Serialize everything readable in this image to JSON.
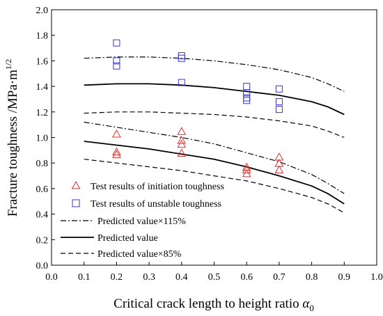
{
  "chart_data": {
    "type": "scatter",
    "xlabel": "Critical crack length to height ratio",
    "xlabel_symbol": "α",
    "xlabel_subscript": "0",
    "ylabel": "Fracture toughness /MPa·m",
    "ylabel_superscript": "1/2",
    "xlim": [
      0.0,
      1.0
    ],
    "ylim": [
      0.0,
      2.0
    ],
    "xticks": [
      "0.0",
      "0.1",
      "0.2",
      "0.3",
      "0.4",
      "0.5",
      "0.6",
      "0.7",
      "0.8",
      "0.9",
      "1.0"
    ],
    "yticks": [
      "0.0",
      "0.2",
      "0.4",
      "0.6",
      "0.8",
      "1.0",
      "1.2",
      "1.4",
      "1.6",
      "1.8",
      "2.0"
    ],
    "grid": false,
    "legend_position": "bottom-left",
    "series": [
      {
        "name": "Test results of initiation toughness",
        "kind": "scatter",
        "marker": "triangle",
        "color": "#e03030",
        "x": [
          0.2,
          0.2,
          0.2,
          0.4,
          0.4,
          0.4,
          0.4,
          0.6,
          0.6,
          0.6,
          0.7,
          0.7,
          0.7
        ],
        "y": [
          1.03,
          0.89,
          0.87,
          1.05,
          0.98,
          0.95,
          0.88,
          0.77,
          0.75,
          0.72,
          0.85,
          0.8,
          0.75
        ]
      },
      {
        "name": "Test results of unstable toughness",
        "kind": "scatter",
        "marker": "square",
        "color": "#3535d0",
        "x": [
          0.2,
          0.2,
          0.2,
          0.4,
          0.4,
          0.4,
          0.6,
          0.6,
          0.6,
          0.6,
          0.7,
          0.7,
          0.7
        ],
        "y": [
          1.74,
          1.6,
          1.56,
          1.64,
          1.62,
          1.43,
          1.4,
          1.35,
          1.31,
          1.29,
          1.38,
          1.28,
          1.22
        ]
      },
      {
        "name": "Predicted value×115%",
        "kind": "line",
        "dash": "dashdot",
        "color": "#000000",
        "groups": [
          {
            "x": [
              0.1,
              0.2,
              0.3,
              0.4,
              0.5,
              0.6,
              0.7,
              0.8,
              0.85,
              0.9
            ],
            "y": [
              1.62,
              1.63,
              1.63,
              1.62,
              1.6,
              1.57,
              1.53,
              1.47,
              1.42,
              1.36
            ]
          },
          {
            "x": [
              0.1,
              0.2,
              0.3,
              0.4,
              0.5,
              0.6,
              0.7,
              0.8,
              0.85,
              0.9
            ],
            "y": [
              1.12,
              1.08,
              1.04,
              1.0,
              0.95,
              0.88,
              0.81,
              0.71,
              0.64,
              0.56
            ]
          }
        ]
      },
      {
        "name": "Predicted value",
        "kind": "line",
        "dash": "solid",
        "color": "#000000",
        "groups": [
          {
            "x": [
              0.1,
              0.2,
              0.3,
              0.4,
              0.5,
              0.6,
              0.7,
              0.8,
              0.85,
              0.9
            ],
            "y": [
              1.41,
              1.42,
              1.42,
              1.41,
              1.39,
              1.36,
              1.33,
              1.28,
              1.24,
              1.18
            ]
          },
          {
            "x": [
              0.1,
              0.2,
              0.3,
              0.4,
              0.5,
              0.6,
              0.7,
              0.8,
              0.85,
              0.9
            ],
            "y": [
              0.97,
              0.94,
              0.91,
              0.87,
              0.83,
              0.77,
              0.7,
              0.62,
              0.56,
              0.48
            ]
          }
        ]
      },
      {
        "name": "Predicted value×85%",
        "kind": "line",
        "dash": "dashed",
        "color": "#000000",
        "groups": [
          {
            "x": [
              0.1,
              0.2,
              0.3,
              0.4,
              0.5,
              0.6,
              0.7,
              0.8,
              0.85,
              0.9
            ],
            "y": [
              1.19,
              1.2,
              1.2,
              1.19,
              1.18,
              1.16,
              1.13,
              1.09,
              1.05,
              1.0
            ]
          },
          {
            "x": [
              0.1,
              0.2,
              0.3,
              0.4,
              0.5,
              0.6,
              0.7,
              0.8,
              0.85,
              0.9
            ],
            "y": [
              0.83,
              0.8,
              0.77,
              0.74,
              0.7,
              0.66,
              0.6,
              0.53,
              0.48,
              0.41
            ]
          }
        ]
      }
    ]
  }
}
